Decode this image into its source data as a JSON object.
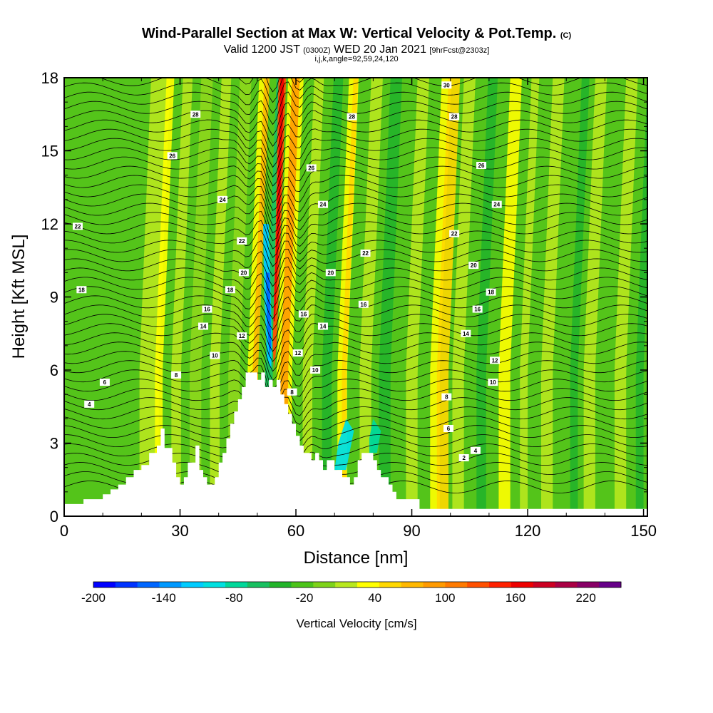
{
  "header": {
    "title": "Wind-Parallel Section at Max W: Vertical Velocity & Pot.Temp.",
    "title_suffix": "(C)",
    "valid_prefix": "Valid 1200 JST",
    "valid_utc": "(0300Z)",
    "valid_date": "WED 20 Jan 2021",
    "forecast": "[9hrFcst@2303z]",
    "indices": "i,j,k,angle=92,59,24,120"
  },
  "chart_data": {
    "type": "heatmap",
    "xlabel": "Distance [nm]",
    "ylabel": "Height [Kft MSL]",
    "xlim": [
      0,
      151
    ],
    "ylim": [
      0,
      18
    ],
    "x_ticks": [
      0,
      30,
      60,
      90,
      120,
      150
    ],
    "y_ticks": [
      0,
      3,
      6,
      9,
      12,
      15,
      18
    ],
    "colorbar": {
      "label": "Vertical Velocity [cm/s]",
      "min": -200,
      "max": 250,
      "tick_values": [
        -200,
        -140,
        -80,
        -20,
        40,
        100,
        160,
        220
      ],
      "colors": [
        "#0000ff",
        "#0033ff",
        "#0066ff",
        "#0099ff",
        "#00ccff",
        "#00e0e0",
        "#00d89a",
        "#18c060",
        "#22b42a",
        "#4cc41a",
        "#7ed31a",
        "#b8e81e",
        "#ffff00",
        "#ffd800",
        "#ffb800",
        "#ff9a00",
        "#ff7a00",
        "#ff5000",
        "#ff2000",
        "#ee0000",
        "#cc0022",
        "#aa0044",
        "#880066",
        "#660088"
      ]
    },
    "terrain_kft": [
      [
        0,
        0.5
      ],
      [
        5,
        0.5
      ],
      [
        5,
        0.7
      ],
      [
        10,
        0.7
      ],
      [
        10,
        0.9
      ],
      [
        12,
        0.9
      ],
      [
        12,
        1.1
      ],
      [
        14,
        1.1
      ],
      [
        14,
        1.3
      ],
      [
        16,
        1.3
      ],
      [
        16,
        1.6
      ],
      [
        18,
        1.6
      ],
      [
        18,
        1.9
      ],
      [
        20,
        1.9
      ],
      [
        20,
        2.1
      ],
      [
        22,
        2.1
      ],
      [
        22,
        2.6
      ],
      [
        24,
        2.6
      ],
      [
        24,
        2.9
      ],
      [
        25,
        2.9
      ],
      [
        25,
        3.6
      ],
      [
        26,
        3.6
      ],
      [
        26,
        2.8
      ],
      [
        28,
        2.8
      ],
      [
        28,
        2.2
      ],
      [
        29,
        2.2
      ],
      [
        29,
        1.6
      ],
      [
        30,
        1.6
      ],
      [
        30,
        1.3
      ],
      [
        31,
        1.3
      ],
      [
        31,
        1.6
      ],
      [
        32,
        1.6
      ],
      [
        32,
        2.2
      ],
      [
        34,
        2.2
      ],
      [
        34,
        2.9
      ],
      [
        35,
        2.9
      ],
      [
        35,
        1.9
      ],
      [
        36,
        1.9
      ],
      [
        36,
        1.6
      ],
      [
        37,
        1.6
      ],
      [
        37,
        1.3
      ],
      [
        39,
        1.3
      ],
      [
        39,
        1.6
      ],
      [
        40,
        1.6
      ],
      [
        40,
        2.2
      ],
      [
        41,
        2.2
      ],
      [
        41,
        2.6
      ],
      [
        42,
        2.6
      ],
      [
        42,
        3.2
      ],
      [
        43,
        3.2
      ],
      [
        43,
        3.8
      ],
      [
        44,
        3.8
      ],
      [
        44,
        4.3
      ],
      [
        45,
        4.3
      ],
      [
        45,
        4.8
      ],
      [
        46,
        4.8
      ],
      [
        46,
        5.3
      ],
      [
        47,
        5.3
      ],
      [
        47,
        5.9
      ],
      [
        50,
        5.9
      ],
      [
        50,
        5.6
      ],
      [
        51,
        5.6
      ],
      [
        51,
        5.9
      ],
      [
        52,
        5.9
      ],
      [
        52,
        5.3
      ],
      [
        53,
        5.3
      ],
      [
        53,
        5.6
      ],
      [
        54,
        5.6
      ],
      [
        54,
        5.3
      ],
      [
        55,
        5.3
      ],
      [
        55,
        5.6
      ],
      [
        56,
        5.6
      ],
      [
        56,
        5.0
      ],
      [
        57,
        5.0
      ],
      [
        57,
        4.6
      ],
      [
        58,
        4.6
      ],
      [
        58,
        4.2
      ],
      [
        59,
        4.2
      ],
      [
        59,
        3.8
      ],
      [
        60,
        3.8
      ],
      [
        60,
        3.3
      ],
      [
        61,
        3.3
      ],
      [
        61,
        2.9
      ],
      [
        62,
        2.9
      ],
      [
        62,
        2.6
      ],
      [
        64,
        2.6
      ],
      [
        64,
        2.3
      ],
      [
        65,
        2.3
      ],
      [
        65,
        2.6
      ],
      [
        66,
        2.6
      ],
      [
        66,
        2.3
      ],
      [
        67,
        2.3
      ],
      [
        67,
        1.9
      ],
      [
        68,
        1.9
      ],
      [
        68,
        2.3
      ],
      [
        70,
        2.3
      ],
      [
        70,
        1.9
      ],
      [
        72,
        1.9
      ],
      [
        72,
        1.6
      ],
      [
        74,
        1.6
      ],
      [
        74,
        1.3
      ],
      [
        75,
        1.3
      ],
      [
        75,
        1.6
      ],
      [
        76,
        1.6
      ],
      [
        76,
        2.3
      ],
      [
        77,
        2.3
      ],
      [
        77,
        2.6
      ],
      [
        80,
        2.6
      ],
      [
        80,
        2.3
      ],
      [
        81,
        2.3
      ],
      [
        81,
        1.9
      ],
      [
        82,
        1.9
      ],
      [
        82,
        1.6
      ],
      [
        84,
        1.6
      ],
      [
        84,
        1.3
      ],
      [
        85,
        1.3
      ],
      [
        85,
        1.0
      ],
      [
        86,
        1.0
      ],
      [
        86,
        0.7
      ],
      [
        92,
        0.7
      ],
      [
        92,
        0.3
      ],
      [
        151,
        0.3
      ]
    ],
    "contours": [
      {
        "label": "2",
        "placements": [
          [
            103.5,
            2.4
          ]
        ]
      },
      {
        "label": "4",
        "placements": [
          [
            6.5,
            4.6
          ],
          [
            106.5,
            2.7
          ]
        ]
      },
      {
        "label": "6",
        "placements": [
          [
            10.5,
            5.5
          ],
          [
            99.5,
            3.6
          ]
        ]
      },
      {
        "label": "8",
        "placements": [
          [
            29,
            5.8
          ],
          [
            59,
            5.1
          ],
          [
            99,
            4.9
          ]
        ]
      },
      {
        "label": "10",
        "placements": [
          [
            39,
            6.6
          ],
          [
            65,
            6.0
          ],
          [
            111,
            5.5
          ]
        ]
      },
      {
        "label": "12",
        "placements": [
          [
            46,
            7.4
          ],
          [
            60.5,
            6.7
          ],
          [
            111.5,
            6.4
          ]
        ]
      },
      {
        "label": "14",
        "placements": [
          [
            36,
            7.8
          ],
          [
            67,
            7.8
          ],
          [
            104,
            7.5
          ]
        ]
      },
      {
        "label": "16",
        "placements": [
          [
            37,
            8.5
          ],
          [
            62,
            8.3
          ],
          [
            77.5,
            8.7
          ],
          [
            107,
            8.5
          ]
        ]
      },
      {
        "label": "18",
        "placements": [
          [
            4.5,
            9.3
          ],
          [
            43,
            9.3
          ],
          [
            110.5,
            9.2
          ]
        ]
      },
      {
        "label": "20",
        "placements": [
          [
            46.5,
            10.0
          ],
          [
            69,
            10.0
          ],
          [
            106,
            10.3
          ]
        ]
      },
      {
        "label": "22",
        "placements": [
          [
            3.5,
            11.9
          ],
          [
            46,
            11.3
          ],
          [
            78,
            10.8
          ],
          [
            101,
            11.6
          ]
        ]
      },
      {
        "label": "24",
        "placements": [
          [
            41,
            13.0
          ],
          [
            67,
            12.8
          ],
          [
            112,
            12.8
          ]
        ]
      },
      {
        "label": "26",
        "placements": [
          [
            28,
            14.8
          ],
          [
            64,
            14.3
          ],
          [
            108,
            14.4
          ]
        ]
      },
      {
        "label": "28",
        "placements": [
          [
            34,
            16.5
          ],
          [
            74.5,
            16.4
          ],
          [
            101,
            16.4
          ]
        ]
      },
      {
        "label": "30",
        "placements": [
          [
            99,
            17.7
          ]
        ]
      }
    ]
  }
}
